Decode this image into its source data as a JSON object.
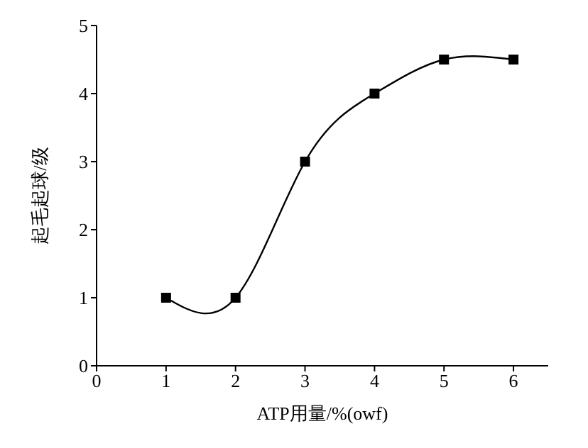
{
  "chart_data": {
    "type": "line",
    "xlabel": "ATP用量/%(owf)",
    "ylabel": "起毛起球/级",
    "x": [
      1,
      2,
      3,
      4,
      5,
      6
    ],
    "series": [
      {
        "color": "#000000",
        "values": [
          1,
          1,
          3,
          4,
          4.5,
          4.5
        ]
      }
    ],
    "xlim": [
      0,
      6.5
    ],
    "xticks": [
      0,
      1,
      2,
      3,
      4,
      5,
      6
    ],
    "ylim": [
      0,
      5
    ],
    "yticks": [
      0,
      1,
      2,
      3,
      4,
      5
    ],
    "marker": "square",
    "line_style": "solid",
    "grid": false,
    "legend": false
  }
}
